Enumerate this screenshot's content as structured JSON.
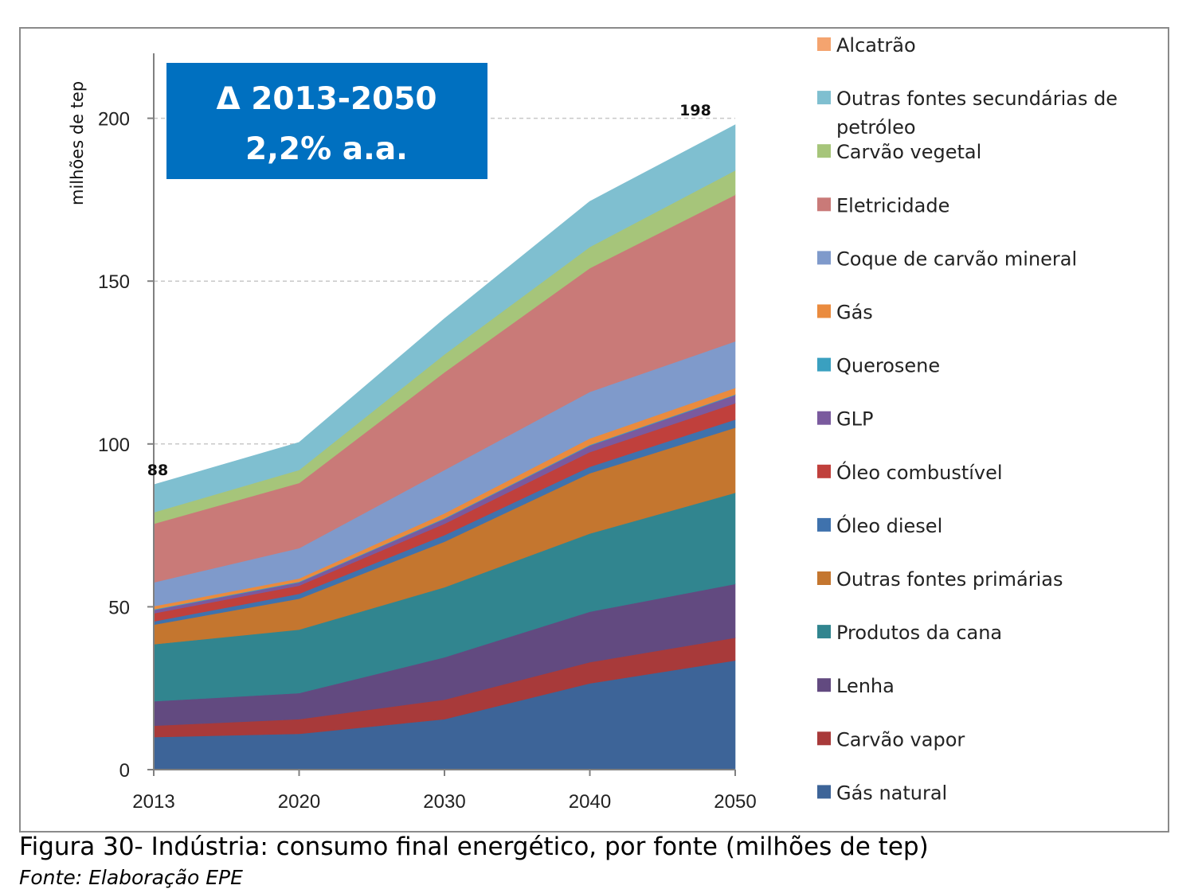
{
  "caption": "Figura 30- Indústria: consumo final energético, por fonte (milhões de tep)",
  "source": "Fonte: Elaboração EPE",
  "annotation_box": {
    "line1": "Δ 2013-2050",
    "line2": "2,2% a.a.",
    "color": "#0070c0"
  },
  "chart_data": {
    "type": "area",
    "stacked": true,
    "x": [
      "2013",
      "2020",
      "2030",
      "2040",
      "2050"
    ],
    "ylabel": "milhões de tep",
    "ylim": [
      0,
      220
    ],
    "yticks": [
      0,
      50,
      100,
      150,
      200
    ],
    "grid": "horizontal dashed",
    "legend_position": "right",
    "data_labels": [
      {
        "x": "2013",
        "text": "88"
      },
      {
        "x": "2050",
        "text": "198"
      }
    ],
    "series": [
      {
        "name": "Gás natural",
        "color": "#3d6498",
        "values": [
          10,
          11,
          15.5,
          26.5,
          33.5
        ]
      },
      {
        "name": "Carvão vapor",
        "color": "#a83a3a",
        "values": [
          3.5,
          4.5,
          6,
          6.5,
          7
        ]
      },
      {
        "name": "Lenha",
        "color": "#624a80",
        "values": [
          7.5,
          8,
          13,
          15.5,
          16.5
        ]
      },
      {
        "name": "Produtos da cana",
        "color": "#31858f",
        "values": [
          17.5,
          19.5,
          21.5,
          24,
          28
        ]
      },
      {
        "name": "Outras fontes primárias",
        "color": "#c4762f",
        "values": [
          6,
          9.5,
          14,
          18.5,
          20
        ]
      },
      {
        "name": "Óleo diesel",
        "color": "#3f72ad",
        "values": [
          1,
          1.5,
          2,
          2,
          2.5
        ]
      },
      {
        "name": "Óleo combustível",
        "color": "#c0403c",
        "values": [
          2.5,
          2.5,
          3.5,
          4.5,
          5
        ]
      },
      {
        "name": "GLP",
        "color": "#7a5a9e",
        "values": [
          1,
          1,
          1.5,
          2,
          2.5
        ]
      },
      {
        "name": "Querosene",
        "color": "#3aa0c0",
        "values": [
          0.2,
          0.2,
          0.2,
          0.2,
          0.2
        ]
      },
      {
        "name": "Gás",
        "color": "#ea8b3e",
        "values": [
          1,
          1,
          1.5,
          2,
          2
        ]
      },
      {
        "name": "Coque de carvão mineral",
        "color": "#7f9acb",
        "values": [
          7.3,
          9.3,
          13.3,
          14.3,
          14.3
        ]
      },
      {
        "name": "Eletricidade",
        "color": "#c97a78",
        "values": [
          18,
          20,
          30,
          38,
          45
        ]
      },
      {
        "name": "Carvão vegetal",
        "color": "#a6c57a",
        "values": [
          3.5,
          4,
          5.5,
          6.5,
          7.5
        ]
      },
      {
        "name": "Outras fontes secundárias de petróleo",
        "color": "#7fbfd0",
        "values": [
          8.5,
          8.5,
          11,
          14,
          14
        ]
      },
      {
        "name": "Alcatrão",
        "color": "#f4a46f",
        "values": [
          0,
          0,
          0,
          0,
          0
        ]
      }
    ]
  }
}
